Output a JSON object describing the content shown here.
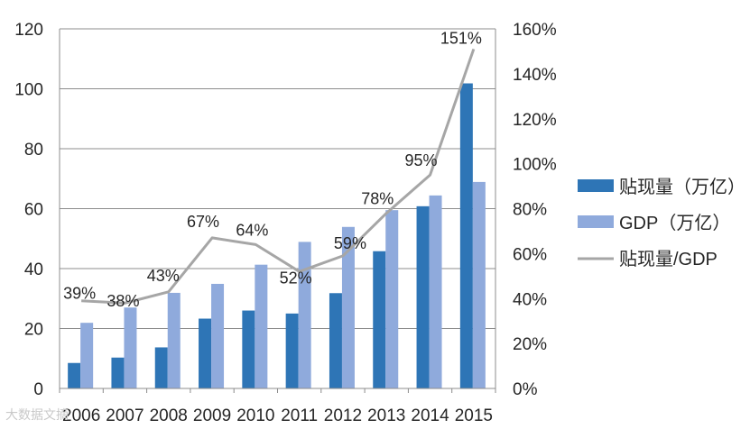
{
  "chart_data": {
    "type": "bar",
    "categories": [
      "2006",
      "2007",
      "2008",
      "2009",
      "2010",
      "2011",
      "2012",
      "2013",
      "2014",
      "2015"
    ],
    "series": [
      {
        "name": "贴现量（万亿）",
        "type": "bar",
        "axis": "left",
        "color": "#2e75b6",
        "values": [
          8.5,
          10.3,
          13.7,
          23.3,
          26,
          25,
          31.8,
          45.8,
          60.8,
          101.8
        ]
      },
      {
        "name": "GDP（万亿）",
        "type": "bar",
        "axis": "left",
        "color": "#8faadc",
        "values": [
          21.9,
          27,
          31.9,
          34.9,
          41.3,
          48.9,
          53.9,
          59.5,
          64.4,
          68.9
        ]
      },
      {
        "name": "贴现量/GDP",
        "type": "line",
        "axis": "right",
        "color": "#a6a6a6",
        "values": [
          0.39,
          0.38,
          0.43,
          0.67,
          0.64,
          0.52,
          0.59,
          0.78,
          0.95,
          1.51
        ],
        "labels": [
          "39%",
          "38%",
          "43%",
          "67%",
          "64%",
          "52%",
          "59%",
          "78%",
          "95%",
          "151%"
        ]
      }
    ],
    "ylim_left": [
      0,
      120
    ],
    "yticks_left": [
      "0",
      "20",
      "40",
      "60",
      "80",
      "100",
      "120"
    ],
    "ylim_right": [
      0,
      1.6
    ],
    "yticks_right": [
      "0%",
      "20%",
      "40%",
      "60%",
      "80%",
      "100%",
      "120%",
      "140%",
      "160%"
    ],
    "grid": true,
    "legend_position": "right",
    "title": "",
    "xlabel": "",
    "ylabel": ""
  },
  "watermark": "大数据文摘"
}
